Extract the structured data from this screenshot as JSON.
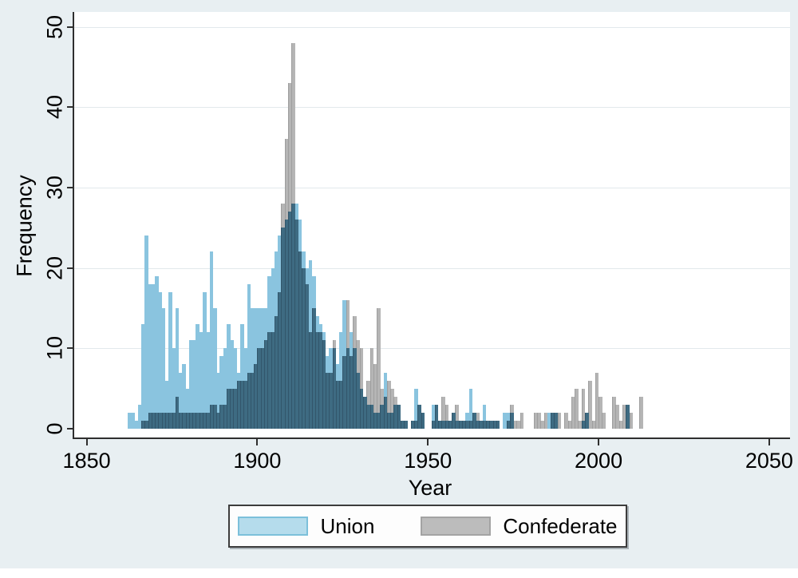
{
  "figure": {
    "y_axis": {
      "title": "Frequency",
      "ticks": [
        0,
        10,
        20,
        30,
        40,
        50
      ]
    },
    "x_axis": {
      "title": "Year",
      "ticks": [
        1850,
        1900,
        1950,
        2000,
        2050
      ]
    },
    "legend": {
      "items": [
        {
          "label": "Union",
          "color": "#8ac4df"
        },
        {
          "label": "Confederate",
          "color": "#b5b5b5"
        }
      ]
    },
    "colors": {
      "union_fill": "#8ac4df",
      "confederate_fill": "#b5b5b5",
      "overlap_fill": "#3e6b82",
      "background": "#e8eff2",
      "plot_background": "#ffffff",
      "gridline": "#e2e9ec",
      "axis": "#2f2f2f"
    }
  },
  "chart_data": {
    "type": "bar",
    "subtype": "overlaid-histogram",
    "title": "",
    "xlabel": "Year",
    "ylabel": "Frequency",
    "xlim": [
      1846,
      2056
    ],
    "ylim": [
      0,
      53
    ],
    "x_ticks": [
      1850,
      1900,
      1950,
      2000,
      2050
    ],
    "y_ticks": [
      0,
      10,
      20,
      30,
      40,
      50
    ],
    "grid": true,
    "legend_position": "bottom",
    "bin_width_years": 1,
    "start_year": 1862,
    "series": [
      {
        "name": "Union",
        "color": "#8ac4df",
        "values": [
          2,
          2,
          1,
          3,
          13,
          24,
          18,
          18,
          19,
          17,
          15,
          6,
          17,
          10,
          15,
          7,
          8,
          5,
          11,
          11,
          13,
          12,
          17,
          12,
          22,
          15,
          7,
          9,
          10,
          13,
          11,
          10,
          7,
          13,
          10,
          18,
          15,
          15,
          15,
          15,
          15,
          19,
          20,
          22,
          24,
          25,
          26,
          27,
          28,
          28,
          26,
          22,
          20,
          21,
          19,
          14,
          13,
          12,
          9,
          10,
          10,
          8,
          12,
          16,
          10,
          12,
          10,
          7,
          5,
          4,
          3,
          3,
          2,
          2,
          3,
          7,
          2,
          2,
          3,
          3,
          1,
          1,
          0,
          1,
          5,
          3,
          2,
          0,
          0,
          3,
          3,
          1,
          1,
          1,
          1,
          2,
          1,
          1,
          1,
          2,
          5,
          2,
          1,
          1,
          3,
          1,
          1,
          1,
          1,
          0,
          2,
          2,
          2,
          0,
          0,
          0,
          0,
          0,
          0,
          0,
          0,
          0,
          0,
          2,
          2,
          2,
          0,
          0,
          0,
          0,
          0,
          0,
          0,
          1,
          2,
          0,
          0,
          0,
          0,
          0,
          0,
          0,
          0,
          0,
          0,
          0,
          3,
          0,
          0,
          0,
          0
        ]
      },
      {
        "name": "Confederate",
        "color": "#b5b5b5",
        "values": [
          0,
          0,
          0,
          0,
          1,
          1,
          2,
          2,
          2,
          2,
          2,
          2,
          2,
          2,
          4,
          2,
          2,
          2,
          2,
          2,
          2,
          2,
          2,
          2,
          3,
          3,
          2,
          3,
          3,
          5,
          5,
          5,
          6,
          6,
          6,
          7,
          7,
          8,
          10,
          10,
          11,
          12,
          12,
          14,
          17,
          28,
          36,
          43,
          48,
          26,
          22,
          20,
          18,
          12,
          15,
          12,
          12,
          11,
          7,
          7,
          11,
          6,
          6,
          9,
          16,
          9,
          14,
          11,
          10,
          4,
          6,
          10,
          8,
          15,
          5,
          4,
          6,
          5,
          4,
          3,
          1,
          1,
          0,
          1,
          1,
          3,
          2,
          0,
          0,
          1,
          3,
          1,
          4,
          3,
          1,
          2,
          3,
          1,
          1,
          1,
          1,
          2,
          2,
          1,
          1,
          1,
          1,
          1,
          1,
          0,
          0,
          1,
          3,
          1,
          1,
          2,
          0,
          0,
          0,
          2,
          2,
          1,
          2,
          0,
          2,
          2,
          2,
          0,
          2,
          1,
          4,
          5,
          1,
          5,
          2,
          6,
          1,
          7,
          4,
          2,
          0,
          0,
          4,
          3,
          1,
          3,
          3,
          2,
          0,
          0,
          4
        ]
      }
    ],
    "overlap_color": "#3e6b82"
  }
}
